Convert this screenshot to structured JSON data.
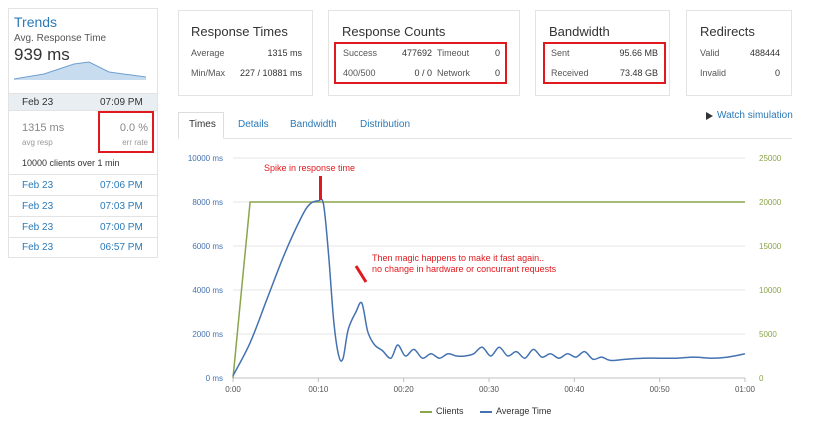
{
  "sidebar": {
    "title": "Trends",
    "avg_label": "Avg. Response Time",
    "avg_value": "939 ms",
    "selected": {
      "date": "Feb 23",
      "time": "07:09 PM"
    },
    "resp_value": "1315 ms",
    "resp_label": "avg resp",
    "err_value": "0.0 %",
    "err_label": "err rate",
    "clients_line": "10000 clients over 1 min",
    "history": [
      {
        "date": "Feb 23",
        "time": "07:06 PM"
      },
      {
        "date": "Feb 23",
        "time": "07:03 PM"
      },
      {
        "date": "Feb 23",
        "time": "07:00 PM"
      },
      {
        "date": "Feb 23",
        "time": "06:57 PM"
      }
    ]
  },
  "cards": {
    "response_times": {
      "title": "Response Times",
      "avg_label": "Average",
      "avg_value": "1315 ms",
      "minmax_label": "Min/Max",
      "minmax_value": "227 / 10881 ms"
    },
    "response_counts": {
      "title": "Response Counts",
      "success_label": "Success",
      "success_value": "477692",
      "timeout_label": "Timeout",
      "timeout_value": "0",
      "c400_label": "400/500",
      "c400_value": "0 / 0",
      "network_label": "Network",
      "network_value": "0"
    },
    "bandwidth": {
      "title": "Bandwidth",
      "sent_label": "Sent",
      "sent_value": "95.66 MB",
      "recv_label": "Received",
      "recv_value": "73.48 GB"
    },
    "redirects": {
      "title": "Redirects",
      "valid_label": "Valid",
      "valid_value": "488444",
      "invalid_label": "Invalid",
      "invalid_value": "0"
    }
  },
  "tabs": [
    {
      "label": "Times"
    },
    {
      "label": "Details"
    },
    {
      "label": "Bandwidth"
    },
    {
      "label": "Distribution"
    }
  ],
  "watch_label": "Watch simulation",
  "annotations": {
    "spike": "Spike in response time",
    "magic_line1": "Then magic happens to make it fast again..",
    "magic_line2": "no change in hardware or concurrant requests"
  },
  "colors": {
    "clients": "#8aa54b",
    "avg_time": "#4472b0",
    "annotation": "#e0191e",
    "link": "#2a7ab8"
  },
  "chart_data": {
    "type": "line",
    "x_ticks": [
      "0:00",
      "00:10",
      "00:20",
      "00:30",
      "00:40",
      "00:50",
      "01:00"
    ],
    "y_left_ticks": [
      "0 ms",
      "2000 ms",
      "4000 ms",
      "6000 ms",
      "8000 ms",
      "10000 ms"
    ],
    "y_right_ticks": [
      "0",
      "5000",
      "10000",
      "15000",
      "20000",
      "25000"
    ],
    "y_left_range": [
      0,
      10000
    ],
    "y_right_range": [
      0,
      25000
    ],
    "x_range_seconds": [
      0,
      60
    ],
    "series": [
      {
        "name": "Clients",
        "axis": "right",
        "points": [
          [
            0,
            0
          ],
          [
            1,
            10000
          ],
          [
            2,
            20000
          ],
          [
            10,
            20000
          ],
          [
            20,
            20000
          ],
          [
            30,
            20000
          ],
          [
            40,
            20000
          ],
          [
            50,
            20000
          ],
          [
            60,
            20000
          ]
        ]
      },
      {
        "name": "Average Time",
        "axis": "left",
        "points": [
          [
            0,
            100
          ],
          [
            2,
            1600
          ],
          [
            4,
            3600
          ],
          [
            6,
            5600
          ],
          [
            8,
            7300
          ],
          [
            9,
            7900
          ],
          [
            10,
            8050
          ],
          [
            10.6,
            7900
          ],
          [
            11.2,
            5600
          ],
          [
            11.8,
            2600
          ],
          [
            12.4,
            1000
          ],
          [
            12.9,
            900
          ],
          [
            13.5,
            2200
          ],
          [
            14.4,
            3000
          ],
          [
            15.1,
            3400
          ],
          [
            15.8,
            2100
          ],
          [
            16.6,
            1500
          ],
          [
            17.5,
            1250
          ],
          [
            18.5,
            900
          ],
          [
            19.3,
            1500
          ],
          [
            20.2,
            1000
          ],
          [
            21.2,
            1300
          ],
          [
            22.2,
            900
          ],
          [
            23.2,
            1100
          ],
          [
            24.2,
            900
          ],
          [
            25.2,
            1100
          ],
          [
            26.2,
            1000
          ],
          [
            27.2,
            1000
          ],
          [
            28.2,
            1100
          ],
          [
            29.2,
            1400
          ],
          [
            30.2,
            1000
          ],
          [
            31.2,
            1400
          ],
          [
            32.2,
            1000
          ],
          [
            33.2,
            1200
          ],
          [
            34.2,
            900
          ],
          [
            35.2,
            1300
          ],
          [
            36.2,
            950
          ],
          [
            37.2,
            1100
          ],
          [
            38.2,
            900
          ],
          [
            39.2,
            1100
          ],
          [
            40.2,
            950
          ],
          [
            41.2,
            1200
          ],
          [
            42.2,
            850
          ],
          [
            43.2,
            950
          ],
          [
            44.2,
            800
          ],
          [
            46,
            850
          ],
          [
            48,
            900
          ],
          [
            50,
            900
          ],
          [
            52,
            900
          ],
          [
            54,
            950
          ],
          [
            56,
            900
          ],
          [
            58,
            950
          ],
          [
            60,
            1100
          ]
        ]
      }
    ]
  }
}
